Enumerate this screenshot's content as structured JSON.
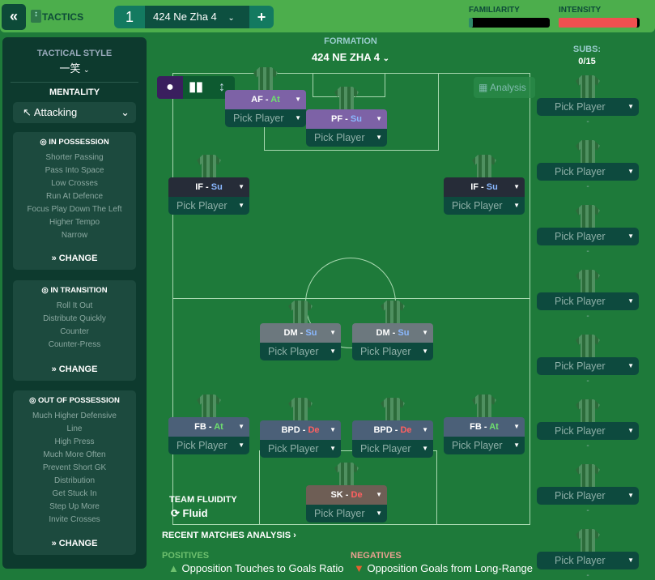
{
  "topbar": {
    "back_icon": "double-chevron-left-icon",
    "tactics_label": "TACTICS",
    "tab_number": "1",
    "tab_name": "424 Ne Zha 4",
    "add_label": "+",
    "familiarity_label": "FAMILIARITY",
    "familiarity_level": 0.05,
    "intensity_label": "INTENSITY",
    "intensity_level": 0.97,
    "intensity_color": "#f05050"
  },
  "sidebar": {
    "style_label": "TACTICAL STYLE",
    "style_value": "一笑",
    "mentality_label": "MENTALITY",
    "mentality_value": "Attacking",
    "in_possession": {
      "title": "IN POSSESSION",
      "items": [
        "Shorter Passing",
        "Pass Into Space",
        "Low Crosses",
        "Run At Defence",
        "Focus Play Down The Left",
        "Higher Tempo",
        "Narrow"
      ]
    },
    "in_transition": {
      "title": "IN TRANSITION",
      "items": [
        "Roll It Out",
        "Distribute Quickly",
        "Counter",
        "Counter-Press"
      ]
    },
    "out_of_possession": {
      "title": "OUT OF POSSESSION",
      "items": [
        "Much Higher Defensive",
        "Line",
        "High Press",
        "Much More Often",
        "Prevent Short GK",
        "Distribution",
        "Get Stuck In",
        "Step Up More",
        "Invite Crosses"
      ]
    },
    "change_label": "CHANGE"
  },
  "formation": {
    "label": "FORMATION",
    "value": "424 NE ZHA 4",
    "analysis_label": "Analysis"
  },
  "players": [
    {
      "role": "AF",
      "duty": "At",
      "pick": "Pick Player",
      "style": "purple"
    },
    {
      "role": "PF",
      "duty": "Su",
      "pick": "Pick Player",
      "style": "purple"
    },
    {
      "role": "IF",
      "duty": "Su",
      "pick": "Pick Player",
      "style": "dark"
    },
    {
      "role": "IF",
      "duty": "Su",
      "pick": "Pick Player",
      "style": "dark"
    },
    {
      "role": "DM",
      "duty": "Su",
      "pick": "Pick Player",
      "style": "gray"
    },
    {
      "role": "DM",
      "duty": "Su",
      "pick": "Pick Player",
      "style": "gray"
    },
    {
      "role": "FB",
      "duty": "At",
      "pick": "Pick Player",
      "style": "slate"
    },
    {
      "role": "BPD",
      "duty": "De",
      "pick": "Pick Player",
      "style": "slate"
    },
    {
      "role": "BPD",
      "duty": "De",
      "pick": "Pick Player",
      "style": "slate"
    },
    {
      "role": "FB",
      "duty": "At",
      "pick": "Pick Player",
      "style": "slate"
    },
    {
      "role": "SK",
      "duty": "De",
      "pick": "Pick Player",
      "style": "brown"
    }
  ],
  "duty_colors": {
    "At": "#6ee06e",
    "Su": "#8ab8ff",
    "De": "#ff6060"
  },
  "subs": {
    "label": "SUBS:",
    "count": "0/15",
    "pick": "Pick Player",
    "dash": "-"
  },
  "fluidity": {
    "label": "TEAM FLUIDITY",
    "value": "Fluid"
  },
  "analysis": {
    "title": "RECENT MATCHES ANALYSIS",
    "positives_label": "POSITIVES",
    "negatives_label": "NEGATIVES",
    "positive_item": "Opposition Touches to Goals Ratio",
    "negative_item": "Opposition Goals from Long-Range"
  }
}
